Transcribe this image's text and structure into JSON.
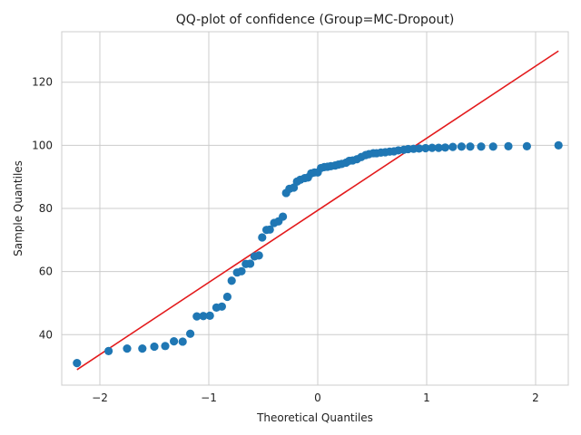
{
  "chart_data": {
    "type": "scatter",
    "title": "QQ-plot of confidence (Group=MC-Dropout)",
    "xlabel": "Theoretical Quantiles",
    "ylabel": "Sample Quantiles",
    "xlim": [
      -2.35,
      2.3
    ],
    "ylim": [
      24,
      136
    ],
    "xticks": [
      -2,
      -1,
      0,
      1,
      2
    ],
    "yticks": [
      40,
      60,
      80,
      100,
      120
    ],
    "xtick_labels": [
      "−2",
      "−1",
      "0",
      "1",
      "2"
    ],
    "ytick_labels": [
      "40",
      "60",
      "80",
      "100",
      "120"
    ],
    "grid": true,
    "legend": "none",
    "colors": {
      "points": "#1f77b4",
      "line": "#e31a1c",
      "grid": "#cccccc",
      "spine": "#cccccc"
    },
    "points": [
      [
        -2.21,
        31.0
      ],
      [
        -1.92,
        34.8
      ],
      [
        -1.75,
        35.6
      ],
      [
        -1.61,
        35.6
      ],
      [
        -1.5,
        36.2
      ],
      [
        -1.4,
        36.4
      ],
      [
        -1.32,
        37.9
      ],
      [
        -1.24,
        37.8
      ],
      [
        -1.17,
        40.3
      ],
      [
        -1.11,
        45.8
      ],
      [
        -1.05,
        45.9
      ],
      [
        -0.99,
        46.0
      ],
      [
        -0.93,
        48.6
      ],
      [
        -0.88,
        48.9
      ],
      [
        -0.83,
        52.0
      ],
      [
        -0.79,
        57.1
      ],
      [
        -0.74,
        59.7
      ],
      [
        -0.7,
        60.1
      ],
      [
        -0.66,
        62.4
      ],
      [
        -0.62,
        62.5
      ],
      [
        -0.58,
        64.8
      ],
      [
        -0.54,
        65.1
      ],
      [
        -0.51,
        70.8
      ],
      [
        -0.47,
        73.2
      ],
      [
        -0.44,
        73.3
      ],
      [
        -0.4,
        75.4
      ],
      [
        -0.36,
        75.9
      ],
      [
        -0.32,
        77.4
      ],
      [
        -0.29,
        84.9
      ],
      [
        -0.26,
        86.2
      ],
      [
        -0.22,
        86.6
      ],
      [
        -0.19,
        88.5
      ],
      [
        -0.16,
        89.1
      ],
      [
        -0.12,
        89.6
      ],
      [
        -0.09,
        89.8
      ],
      [
        -0.06,
        91.1
      ],
      [
        -0.03,
        91.4
      ],
      [
        0.0,
        91.4
      ],
      [
        0.03,
        92.8
      ],
      [
        0.06,
        93.1
      ],
      [
        0.09,
        93.2
      ],
      [
        0.12,
        93.4
      ],
      [
        0.16,
        93.6
      ],
      [
        0.19,
        93.9
      ],
      [
        0.22,
        94.1
      ],
      [
        0.26,
        94.5
      ],
      [
        0.29,
        95.1
      ],
      [
        0.32,
        95.2
      ],
      [
        0.36,
        95.6
      ],
      [
        0.4,
        96.3
      ],
      [
        0.44,
        96.9
      ],
      [
        0.47,
        97.2
      ],
      [
        0.51,
        97.5
      ],
      [
        0.54,
        97.5
      ],
      [
        0.58,
        97.7
      ],
      [
        0.62,
        97.8
      ],
      [
        0.66,
        98.0
      ],
      [
        0.7,
        98.1
      ],
      [
        0.74,
        98.4
      ],
      [
        0.79,
        98.6
      ],
      [
        0.83,
        98.8
      ],
      [
        0.88,
        98.9
      ],
      [
        0.93,
        99.0
      ],
      [
        0.99,
        99.1
      ],
      [
        1.05,
        99.2
      ],
      [
        1.11,
        99.2
      ],
      [
        1.17,
        99.3
      ],
      [
        1.24,
        99.5
      ],
      [
        1.32,
        99.6
      ],
      [
        1.4,
        99.6
      ],
      [
        1.5,
        99.6
      ],
      [
        1.61,
        99.6
      ],
      [
        1.75,
        99.7
      ],
      [
        1.92,
        99.7
      ],
      [
        2.21,
        100.0
      ]
    ],
    "reference_line": {
      "x": [
        -2.21,
        2.21
      ],
      "y": [
        28.9,
        129.9
      ]
    }
  }
}
